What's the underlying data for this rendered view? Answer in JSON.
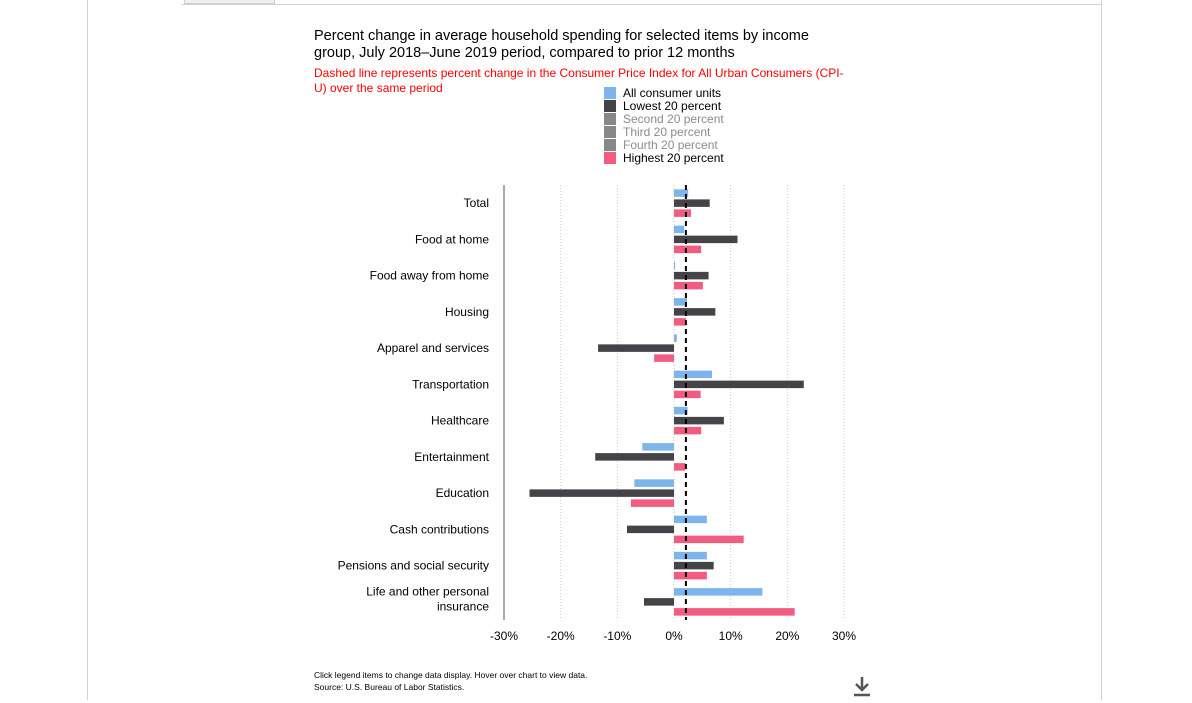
{
  "chart_data": {
    "type": "bar",
    "orientation": "horizontal",
    "title": "Percent change in average household spending for selected items by income group, July 2018–June 2019 period, compared to prior 12 months",
    "subtitle": "Dashed line represents percent change in the Consumer Price Index for All Urban Consumers (CPI-U) over the same period",
    "categories": [
      "Total",
      "Food at home",
      "Food away from home",
      "Housing",
      "Apparel and services",
      "Transportation",
      "Healthcare",
      "Entertainment",
      "Education",
      "Cash contributions",
      "Pensions and social security",
      "Life and other personal insurance"
    ],
    "xlim": [
      -30,
      30
    ],
    "x_ticks": [
      "-30%",
      "-20%",
      "-10%",
      "0%",
      "10%",
      "20%",
      "30%"
    ],
    "x_tick_values": [
      -30,
      -20,
      -10,
      0,
      10,
      20,
      30
    ],
    "reference_line": {
      "value": 2.1,
      "style": "dashed"
    },
    "grid": "vertical dotted",
    "series": [
      {
        "name": "All consumer units",
        "color": "#7cb5ec",
        "visible": true,
        "values": [
          2.5,
          1.8,
          0.2,
          2.3,
          0.5,
          6.7,
          2.4,
          -5.6,
          -7.0,
          5.8,
          5.8,
          15.6
        ]
      },
      {
        "name": "Lowest 20 percent",
        "color": "#434348",
        "visible": true,
        "values": [
          6.3,
          11.2,
          6.1,
          7.3,
          -13.4,
          22.9,
          8.8,
          -13.9,
          -25.5,
          -8.3,
          7.0,
          -5.3
        ]
      },
      {
        "name": "Second 20 percent",
        "color": "#7f7f7f",
        "visible": false
      },
      {
        "name": "Third 20 percent",
        "color": "#7f7f7f",
        "visible": false
      },
      {
        "name": "Fourth 20 percent",
        "color": "#7f7f7f",
        "visible": false
      },
      {
        "name": "Highest 20 percent",
        "color": "#f15c80",
        "visible": true,
        "values": [
          3.0,
          4.8,
          5.1,
          2.1,
          -3.5,
          4.7,
          4.8,
          2.0,
          -7.6,
          12.3,
          5.8,
          21.3
        ]
      }
    ]
  },
  "footer": {
    "instructions": "Click legend items to change data display. Hover over chart to view data.",
    "source": "Source: U.S. Bureau of Labor Statistics."
  },
  "icons": {
    "download": "download-icon"
  }
}
